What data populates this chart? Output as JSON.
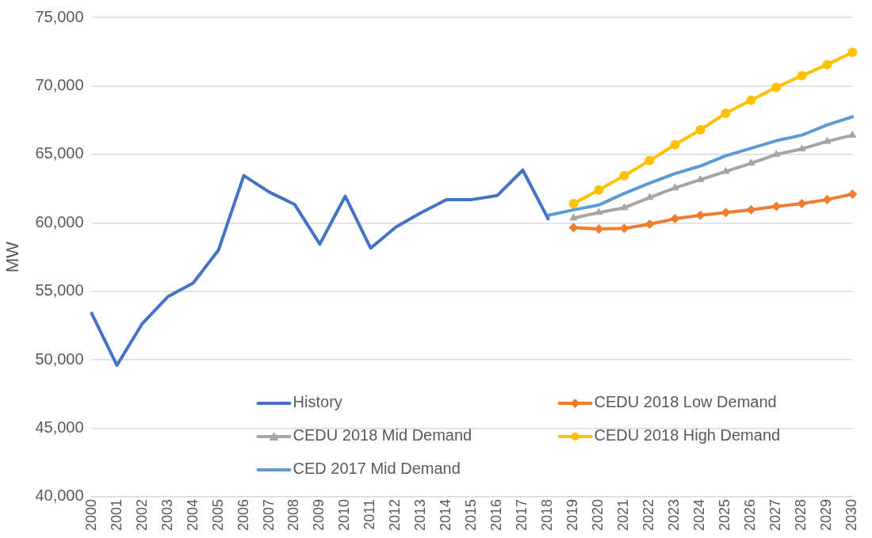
{
  "chart_data": {
    "type": "line",
    "ylabel": "MW",
    "categories": [
      "2000",
      "2001",
      "2002",
      "2003",
      "2004",
      "2005",
      "2006",
      "2007",
      "2008",
      "2009",
      "2010",
      "2011",
      "2012",
      "2013",
      "2014",
      "2015",
      "2016",
      "2017",
      "2018",
      "2019",
      "2020",
      "2021",
      "2022",
      "2023",
      "2024",
      "2025",
      "2026",
      "2027",
      "2028",
      "2029",
      "2030"
    ],
    "ylim": [
      40000,
      75000
    ],
    "yticks": [
      {
        "value": 40000,
        "label": "40,000"
      },
      {
        "value": 45000,
        "label": "45,000"
      },
      {
        "value": 50000,
        "label": "50,000"
      },
      {
        "value": 55000,
        "label": "55,000"
      },
      {
        "value": 60000,
        "label": "60,000"
      },
      {
        "value": 65000,
        "label": "65,000"
      },
      {
        "value": 70000,
        "label": "70,000"
      },
      {
        "value": 75000,
        "label": "75,000"
      }
    ],
    "grid": "y",
    "legend": "bottom",
    "series": [
      {
        "name": "History",
        "color": "#4472c4",
        "marker": "none",
        "values": [
          53400,
          49600,
          52650,
          54600,
          55600,
          58000,
          63450,
          62250,
          61350,
          58450,
          61950,
          58150,
          59700,
          60750,
          61700,
          61700,
          62000,
          63850,
          60300,
          null,
          null,
          null,
          null,
          null,
          null,
          null,
          null,
          null,
          null,
          null,
          null
        ]
      },
      {
        "name": "CEDU 2018 Low Demand",
        "color": "#ed7d31",
        "marker": "diamond",
        "values": [
          null,
          null,
          null,
          null,
          null,
          null,
          null,
          null,
          null,
          null,
          null,
          null,
          null,
          null,
          null,
          null,
          null,
          null,
          null,
          59650,
          59550,
          59600,
          59900,
          60300,
          60550,
          60750,
          60950,
          61200,
          61400,
          61700,
          62100
        ]
      },
      {
        "name": "CEDU 2018 Mid Demand",
        "color": "#a5a5a5",
        "marker": "triangle",
        "values": [
          null,
          null,
          null,
          null,
          null,
          null,
          null,
          null,
          null,
          null,
          null,
          null,
          null,
          null,
          null,
          null,
          null,
          null,
          null,
          60350,
          60750,
          61100,
          61850,
          62550,
          63150,
          63750,
          64350,
          65000,
          65400,
          65950,
          66400
        ]
      },
      {
        "name": "CEDU 2018 High Demand",
        "color": "#ffc000",
        "marker": "circle",
        "values": [
          null,
          null,
          null,
          null,
          null,
          null,
          null,
          null,
          null,
          null,
          null,
          null,
          null,
          null,
          null,
          null,
          null,
          null,
          null,
          61400,
          62400,
          63450,
          64550,
          65700,
          66800,
          68000,
          68950,
          69900,
          70750,
          71550,
          72450
        ]
      },
      {
        "name": "CED 2017 Mid Demand",
        "color": "#5b9bd5",
        "marker": "none",
        "values": [
          null,
          null,
          null,
          null,
          null,
          null,
          null,
          null,
          null,
          null,
          null,
          null,
          null,
          null,
          null,
          null,
          null,
          null,
          60550,
          60950,
          61300,
          62150,
          62900,
          63600,
          64150,
          64900,
          65450,
          66000,
          66400,
          67150,
          67750
        ]
      }
    ]
  }
}
